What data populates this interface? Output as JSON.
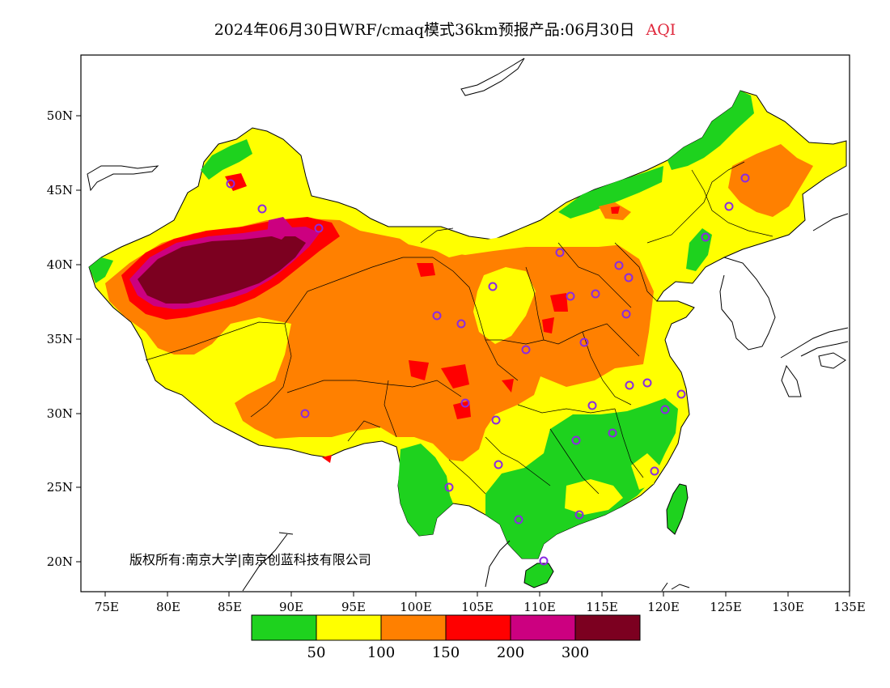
{
  "title": {
    "main": "2024年06月30日WRF/cmaq模式36km预报产品:06月30日",
    "variable": "AQI",
    "variable_color": "#e0283c"
  },
  "axes": {
    "latitude_ticks": [
      "20N",
      "25N",
      "30N",
      "35N",
      "40N",
      "45N",
      "50N"
    ],
    "longitude_ticks": [
      "75E",
      "80E",
      "85E",
      "90E",
      "95E",
      "100E",
      "105E",
      "110E",
      "115E",
      "120E",
      "125E",
      "130E",
      "135E"
    ]
  },
  "copyright": "版权所有:南京大学|南京创蓝科技有限公司",
  "legend": {
    "colors": [
      "#1ed21e",
      "#ffff00",
      "#ff8000",
      "#ff0000",
      "#cc0080",
      "#7c0020"
    ],
    "labels": [
      "50",
      "100",
      "150",
      "200",
      "300"
    ]
  },
  "level_colors": {
    "good": "#1ed21e",
    "moderate": "#ffff00",
    "sensitive": "#ff8000",
    "unhealthy": "#ff0000",
    "very_unhealthy": "#cc0080",
    "hazardous": "#7c0020"
  },
  "marker_color": "#8a2be2"
}
